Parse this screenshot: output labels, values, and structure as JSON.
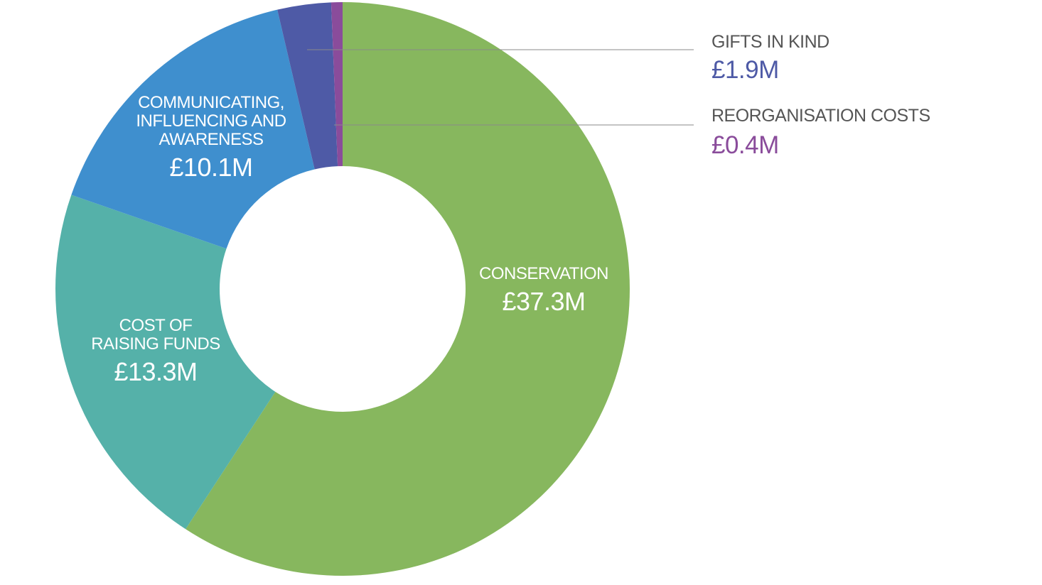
{
  "chart_data": {
    "type": "pie",
    "variant": "donut",
    "title": "",
    "slices": [
      {
        "name": "CONSERVATION",
        "lines": [
          "CONSERVATION"
        ],
        "value": 37.3,
        "value_label": "£37.3M",
        "color": "#87b75e",
        "label_style": "inside"
      },
      {
        "name": "COST OF RAISING FUNDS",
        "lines": [
          "COST OF",
          "RAISING FUNDS"
        ],
        "value": 13.3,
        "value_label": "£13.3M",
        "color": "#55b1a9",
        "label_style": "inside"
      },
      {
        "name": "COMMUNICATING, INFLUENCING AND AWARENESS",
        "lines": [
          "COMMUNICATING,",
          "INFLUENCING AND",
          "AWARENESS"
        ],
        "value": 10.1,
        "value_label": "£10.1M",
        "color": "#3f8fce",
        "label_style": "inside"
      },
      {
        "name": "GIFTS IN KIND",
        "lines": [
          "GIFTS IN KIND"
        ],
        "value": 1.9,
        "value_label": "£1.9M",
        "color": "#4e5aa6",
        "label_style": "callout"
      },
      {
        "name": "REORGANISATION COSTS",
        "lines": [
          "REORGANISATION COSTS"
        ],
        "value": 0.4,
        "value_label": "£0.4M",
        "color": "#8a4c9b",
        "label_style": "callout"
      }
    ],
    "start_angle_deg": 0,
    "direction": "clockwise",
    "legend": "none"
  }
}
